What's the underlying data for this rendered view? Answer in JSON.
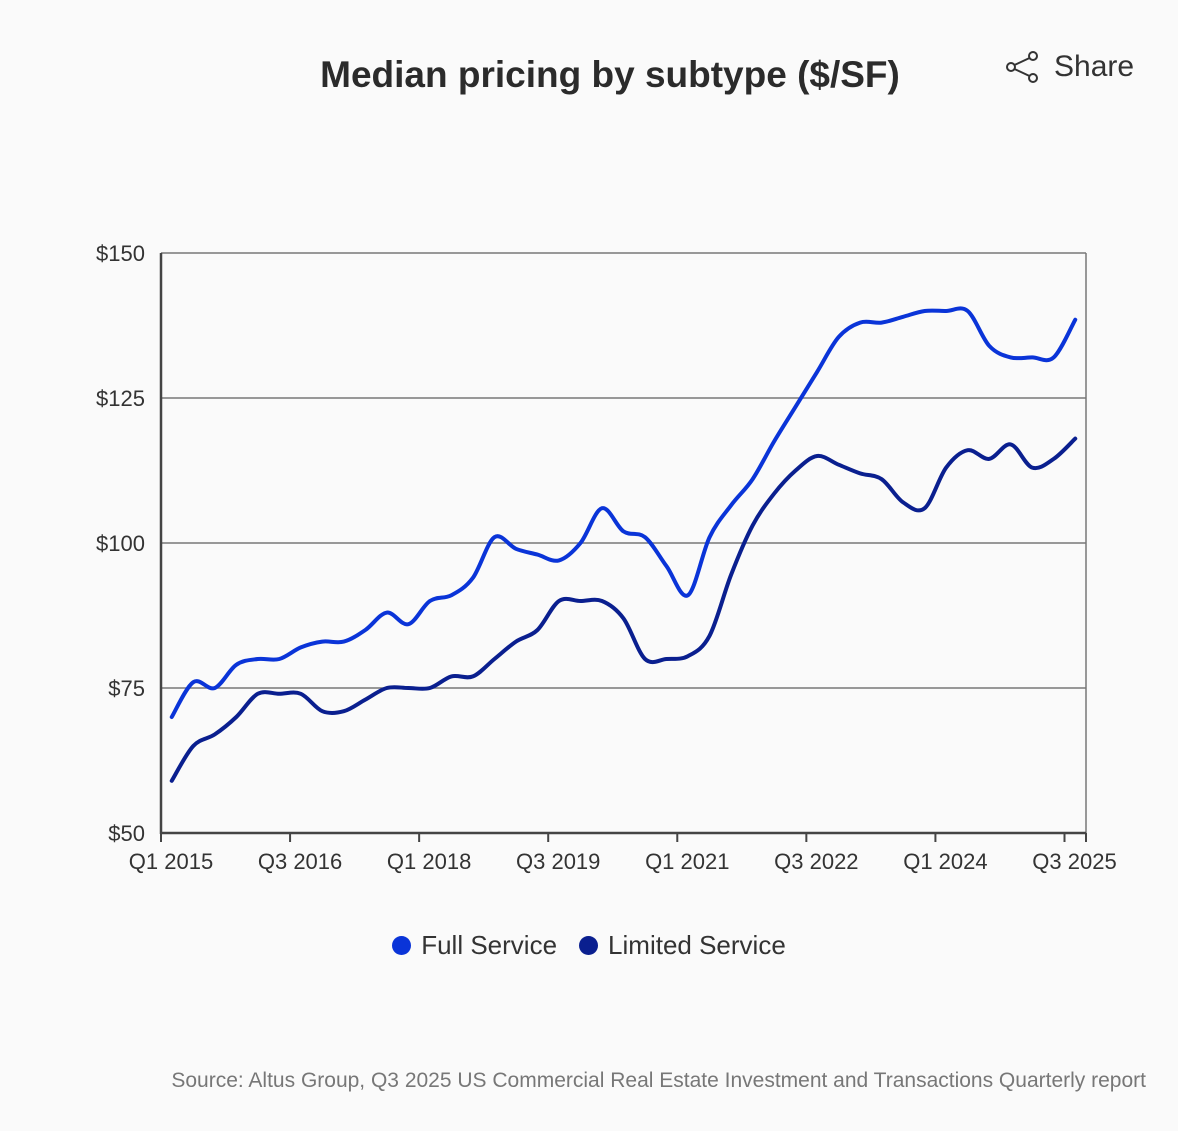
{
  "header": {
    "share_label": "Share",
    "share_icon": "share-icon"
  },
  "source": "Source: Altus Group, Q3 2025 US Commercial Real Estate Investment and Transactions Quarterly report",
  "chart_data": {
    "type": "line",
    "title": "Median pricing by subtype ($/SF)",
    "xlabel": "",
    "ylabel": "",
    "ylim": [
      50,
      150
    ],
    "yticks": [
      50,
      75,
      100,
      125,
      150
    ],
    "ytick_labels": [
      "$50",
      "$75",
      "$100",
      "$125",
      "$150"
    ],
    "grid": "horizontal",
    "legend_placement": "bottom",
    "x": [
      "Q1 2015",
      "Q2 2015",
      "Q3 2015",
      "Q4 2015",
      "Q1 2016",
      "Q2 2016",
      "Q3 2016",
      "Q4 2016",
      "Q1 2017",
      "Q2 2017",
      "Q3 2017",
      "Q4 2017",
      "Q1 2018",
      "Q2 2018",
      "Q3 2018",
      "Q4 2018",
      "Q1 2019",
      "Q2 2019",
      "Q3 2019",
      "Q4 2019",
      "Q1 2020",
      "Q2 2020",
      "Q3 2020",
      "Q4 2020",
      "Q1 2021",
      "Q2 2021",
      "Q3 2021",
      "Q4 2021",
      "Q1 2022",
      "Q2 2022",
      "Q3 2022",
      "Q4 2022",
      "Q1 2023",
      "Q2 2023",
      "Q3 2023",
      "Q4 2023",
      "Q1 2024",
      "Q2 2024",
      "Q3 2024",
      "Q4 2024",
      "Q1 2025",
      "Q2 2025",
      "Q3 2025"
    ],
    "xtick_labels": [
      "Q1 2015",
      "Q3 2016",
      "Q1 2018",
      "Q3 2019",
      "Q1 2021",
      "Q3 2022",
      "Q1 2024",
      "Q3 2025"
    ],
    "series": [
      {
        "name": "Full Service",
        "color": "#0a34d8",
        "values": [
          70,
          76,
          75,
          79,
          80,
          80,
          82,
          83,
          83,
          85,
          88,
          86,
          90,
          91,
          94,
          101,
          99,
          98,
          97,
          100,
          106,
          102,
          101,
          96,
          91,
          101,
          106.5,
          111,
          117.5,
          123.5,
          129.5,
          135.5,
          138,
          138,
          139,
          140,
          140,
          140,
          134,
          132,
          132,
          132,
          138.5
        ]
      },
      {
        "name": "Limited Service",
        "color": "#0a1f8f",
        "values": [
          59,
          65,
          67,
          70,
          74,
          74,
          74,
          71,
          71,
          73,
          75,
          75,
          75,
          77,
          77,
          80,
          83,
          85,
          90,
          90,
          90,
          87,
          80,
          80,
          80.5,
          84,
          94.5,
          103,
          108.5,
          112.5,
          115,
          113.5,
          112,
          111,
          107,
          106,
          113,
          116,
          114.5,
          117,
          113,
          114.5,
          118
        ]
      }
    ]
  }
}
